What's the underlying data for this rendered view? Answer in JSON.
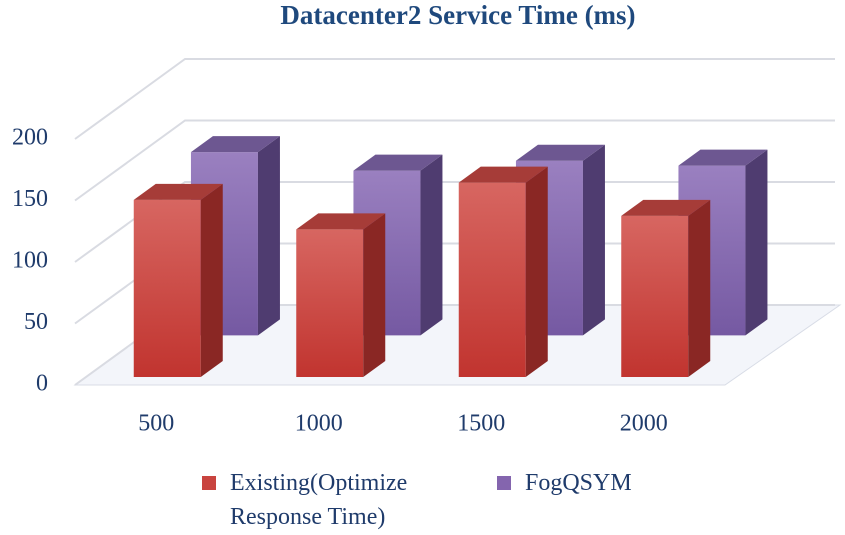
{
  "chart_data": {
    "type": "bar3d",
    "title": "Datacenter2 Service Time (ms)",
    "categories": [
      "500",
      "1000",
      "1500",
      "2000"
    ],
    "series": [
      {
        "name": "Existing(Optimize Response Time)",
        "color": "#c9443f",
        "values": [
          144,
          120,
          158,
          131
        ]
      },
      {
        "name": "FogQSYM",
        "color": "#8465ae",
        "values": [
          149,
          134,
          142,
          138
        ]
      }
    ],
    "ylim": [
      0,
      200
    ],
    "yticks": [
      0,
      50,
      100,
      150,
      200
    ],
    "grid": true
  }
}
